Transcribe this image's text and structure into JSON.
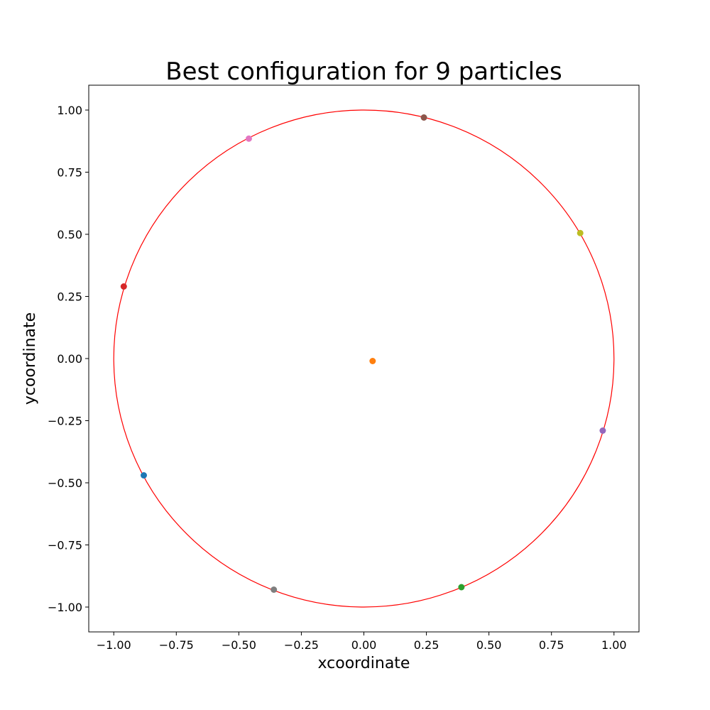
{
  "chart_data": {
    "type": "scatter",
    "title": "Best configuration for 9 particles",
    "xlabel": "xcoordinate",
    "ylabel": "ycoordinate",
    "xlim": [
      -1.1,
      1.1
    ],
    "ylim": [
      -1.1,
      1.1
    ],
    "grid": false,
    "x_ticks": [
      -1.0,
      -0.75,
      -0.5,
      -0.25,
      0.0,
      0.25,
      0.5,
      0.75,
      1.0
    ],
    "y_ticks": [
      -1.0,
      -0.75,
      -0.5,
      -0.25,
      0.0,
      0.25,
      0.5,
      0.75,
      1.0
    ],
    "x_tick_labels": [
      "−1.00",
      "−0.75",
      "−0.50",
      "−0.25",
      "0.00",
      "0.25",
      "0.50",
      "0.75",
      "1.00"
    ],
    "y_tick_labels": [
      "−1.00",
      "−0.75",
      "−0.50",
      "−0.25",
      "0.00",
      "0.25",
      "0.50",
      "0.75",
      "1.00"
    ],
    "boundary_circle": {
      "cx": 0,
      "cy": 0,
      "r": 1.0,
      "color": "#ff0000"
    },
    "points": [
      {
        "x": -0.88,
        "y": -0.47,
        "color": "#1f77b4"
      },
      {
        "x": 0.035,
        "y": -0.01,
        "color": "#ff7f0e"
      },
      {
        "x": 0.39,
        "y": -0.92,
        "color": "#2ca02c"
      },
      {
        "x": -0.96,
        "y": 0.29,
        "color": "#d62728"
      },
      {
        "x": 0.955,
        "y": -0.29,
        "color": "#9467bd"
      },
      {
        "x": 0.24,
        "y": 0.97,
        "color": "#8c564b"
      },
      {
        "x": -0.46,
        "y": 0.885,
        "color": "#e377c2"
      },
      {
        "x": -0.36,
        "y": -0.93,
        "color": "#7f7f7f"
      },
      {
        "x": 0.865,
        "y": 0.505,
        "color": "#bcbd22"
      }
    ]
  }
}
